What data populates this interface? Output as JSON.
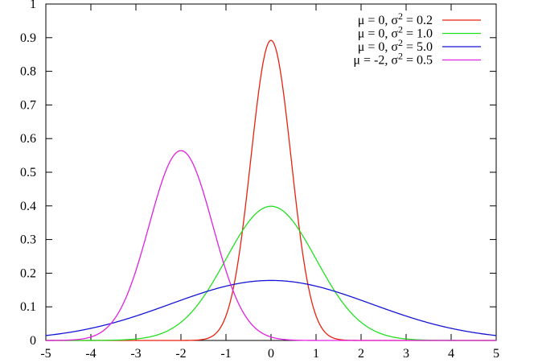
{
  "chart_data": {
    "type": "line",
    "title": "",
    "xlabel": "",
    "ylabel": "",
    "xlim": [
      -5,
      5
    ],
    "ylim": [
      0,
      1
    ],
    "grid": false,
    "legend_position": "top-right",
    "x_ticks": [
      "-5",
      "-4",
      "-3",
      "-2",
      "-1",
      "0",
      "1",
      "2",
      "3",
      "4",
      "5"
    ],
    "y_ticks": [
      "0",
      "0.1",
      "0.2",
      "0.3",
      "0.4",
      "0.5",
      "0.6",
      "0.7",
      "0.8",
      "0.9",
      "1"
    ],
    "series": [
      {
        "name": "μ = 0, σ2 = 0.2",
        "mu_label": "μ =  0, σ",
        "sup": "2",
        "var_label": " = 0.2",
        "mu": 0,
        "variance": 0.2,
        "color": "#e8220f"
      },
      {
        "name": "μ = 0, σ2 = 1.0",
        "mu_label": "μ =  0, σ",
        "sup": "2",
        "var_label": " = 1.0",
        "mu": 0,
        "variance": 1.0,
        "color": "#22e022"
      },
      {
        "name": "μ = 0, σ2 = 5.0",
        "mu_label": "μ =  0, σ",
        "sup": "2",
        "var_label": " = 5.0",
        "mu": 0,
        "variance": 5.0,
        "color": "#1515d6"
      },
      {
        "name": "μ = -2, σ2 = 0.5",
        "mu_label": "μ = -2, σ",
        "sup": "2",
        "var_label": " = 0.5",
        "mu": -2,
        "variance": 0.5,
        "color": "#e022e0"
      }
    ]
  }
}
